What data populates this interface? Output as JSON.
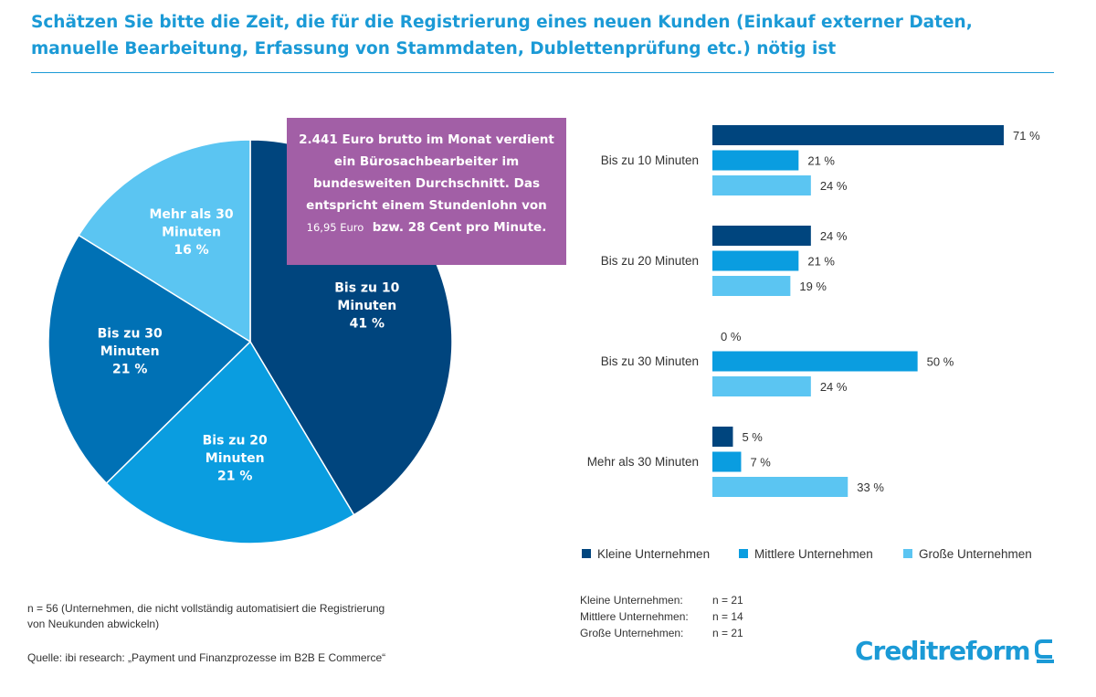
{
  "title": "Schätzen Sie bitte die Zeit, die für die Registrierung eines neuen Kunden (Einkauf externer Daten, manuelle Bearbeitung, Erfassung von Stammdaten, Dublettenprüfung etc.) nötig ist",
  "callout": {
    "part1": "2.441 Euro brutto im Monat verdient ein Bürosachbearbeiter im bundesweiten Durchschnitt. Das entspricht einem Stundenlohn von",
    "small": "16,95 Euro",
    "part2": "bzw. 28 Cent pro Minute."
  },
  "footnote": {
    "n_note": "n = 56 (Unternehmen, die nicht vollständig automatisiert die Registrierung von Neukunden abwickeln)",
    "source": "Quelle: ibi research: „Payment und Finanzprozesse im B2B E Commerce“"
  },
  "n_table": [
    {
      "label": "Kleine Unternehmen:",
      "value": "n = 21"
    },
    {
      "label": "Mittlere Unternehmen:",
      "value": "n = 14"
    },
    {
      "label": "Große Unternehmen:",
      "value": "n = 21"
    }
  ],
  "logo": {
    "text": "Creditreform"
  },
  "colors": {
    "title": "#1b9ad6",
    "dark_navy": "#00457e",
    "blue": "#0a9de0",
    "light_blue": "#5bc5f2",
    "mid_blue": "#0071b5",
    "callout": "#a25fa6"
  },
  "chart_data": [
    {
      "type": "pie",
      "slices": [
        {
          "label": [
            "Bis zu 10",
            "Minuten",
            "41 %"
          ],
          "value": 41,
          "color": "#00457e"
        },
        {
          "label": [
            "Bis zu 20",
            "Minuten",
            "21 %"
          ],
          "value": 21,
          "color": "#0a9de0"
        },
        {
          "label": [
            "Bis zu 30",
            "Minuten",
            "21 %"
          ],
          "value": 21,
          "color": "#0071b5"
        },
        {
          "label": [
            "Mehr als 30",
            "Minuten",
            "16 %"
          ],
          "value": 16,
          "color": "#5bc5f2"
        }
      ]
    },
    {
      "type": "bar",
      "orientation": "horizontal",
      "categories": [
        "Bis zu 10 Minuten",
        "Bis zu 20 Minuten",
        "Bis zu 30 Minuten",
        "Mehr als 30 Minuten"
      ],
      "series": [
        {
          "name": "Kleine Unternehmen",
          "values": [
            71,
            24,
            0,
            5
          ],
          "labels": [
            "71 %",
            "24 %",
            "0 %",
            "5 %"
          ],
          "color": "#00457e"
        },
        {
          "name": "Mittlere Unternehmen",
          "values": [
            21,
            21,
            50,
            7
          ],
          "labels": [
            "21 %",
            "21 %",
            "50 %",
            "7 %"
          ],
          "color": "#0a9de0"
        },
        {
          "name": "Große Unternehmen",
          "values": [
            24,
            19,
            24,
            33
          ],
          "labels": [
            "24 %",
            "19 %",
            "24 %",
            "33 %"
          ],
          "color": "#5bc5f2"
        }
      ],
      "legend_position": "bottom",
      "grid": false
    }
  ]
}
